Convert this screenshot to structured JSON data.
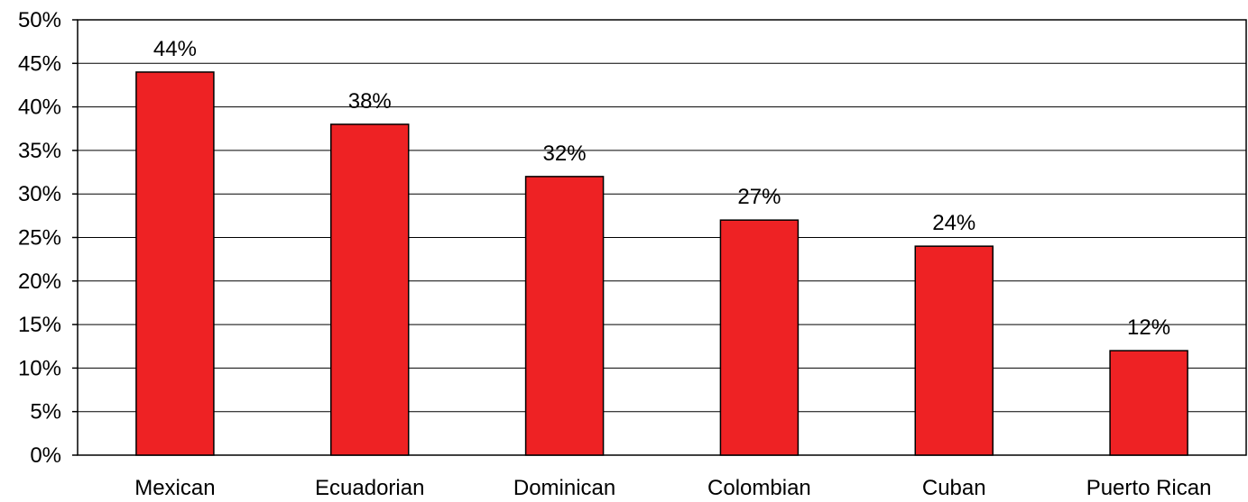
{
  "chart_data": {
    "type": "bar",
    "title": "",
    "xlabel": "",
    "ylabel": "",
    "categories": [
      "Mexican",
      "Ecuadorian",
      "Dominican",
      "Colombian",
      "Cuban",
      "Puerto Rican"
    ],
    "values": [
      44,
      38,
      32,
      27,
      24,
      12
    ],
    "value_labels": [
      "44%",
      "38%",
      "32%",
      "27%",
      "24%",
      "12%"
    ],
    "ylim": [
      0,
      50
    ],
    "y_ticks": [
      0,
      5,
      10,
      15,
      20,
      25,
      30,
      35,
      40,
      45,
      50
    ],
    "y_tick_labels": [
      "0%",
      "5%",
      "10%",
      "15%",
      "20%",
      "25%",
      "30%",
      "35%",
      "40%",
      "45%",
      "50%"
    ],
    "grid": true,
    "legend": "none",
    "colors": {
      "bar_fill": "#ee2224",
      "bar_stroke": "#000000",
      "grid": "#000000",
      "axis": "#000000"
    }
  }
}
